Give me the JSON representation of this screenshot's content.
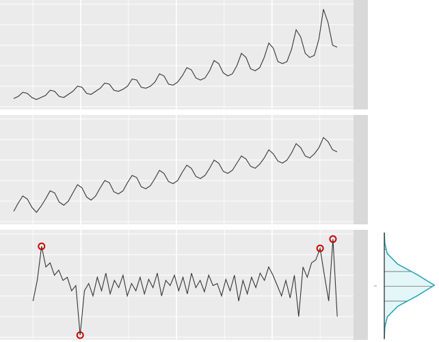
{
  "chart_data": [
    {
      "type": "line",
      "color": "#333333",
      "background": "#ebebeb",
      "strip": "#d9d9d9",
      "grid": true,
      "xlim": [
        -3,
        74.6
      ],
      "ylim": [
        0,
        100
      ],
      "xticks": [
        4.2,
        14.7,
        25.2,
        35.7,
        46.2,
        56.7,
        67.2
      ],
      "yticks": [
        0,
        20,
        40,
        60,
        80,
        100
      ],
      "values": [
        8,
        10,
        14,
        13,
        9,
        7,
        9,
        11,
        16,
        15,
        10,
        9,
        12,
        15,
        20,
        19,
        13,
        12,
        15,
        18,
        23,
        22,
        16,
        15,
        17,
        20,
        27,
        26,
        19,
        18,
        20,
        24,
        32,
        30,
        22,
        21,
        24,
        30,
        38,
        36,
        28,
        26,
        28,
        35,
        45,
        42,
        33,
        30,
        32,
        40,
        52,
        48,
        37,
        35,
        38,
        48,
        62,
        57,
        44,
        42,
        44,
        56,
        75,
        68,
        52,
        48,
        50,
        66,
        95,
        82,
        60,
        58
      ]
    },
    {
      "type": "line",
      "color": "#333333",
      "background": "#ebebeb",
      "strip": "#d9d9d9",
      "grid": true,
      "xlim": [
        -3,
        74.6
      ],
      "ylim": [
        0,
        100
      ],
      "xticks": [
        4.2,
        14.7,
        25.2,
        35.7,
        46.2,
        56.7,
        67.2
      ],
      "yticks": [
        0,
        20,
        40,
        60,
        80,
        100
      ],
      "values": [
        10,
        18,
        25,
        22,
        14,
        9,
        15,
        22,
        30,
        28,
        19,
        16,
        20,
        28,
        36,
        33,
        24,
        21,
        25,
        33,
        40,
        38,
        29,
        27,
        30,
        38,
        45,
        43,
        34,
        32,
        35,
        42,
        50,
        47,
        39,
        37,
        40,
        48,
        55,
        52,
        44,
        42,
        45,
        52,
        60,
        57,
        49,
        47,
        50,
        57,
        64,
        61,
        54,
        52,
        56,
        62,
        70,
        66,
        59,
        57,
        60,
        67,
        76,
        72,
        64,
        62,
        66,
        72,
        82,
        78,
        70,
        68
      ]
    },
    {
      "type": "line",
      "color": "#333333",
      "background": "#ebebeb",
      "strip": "#d9d9d9",
      "grid": true,
      "outlier_color": "#cc0000",
      "xlim": [
        -7.7,
        74.8
      ],
      "ylim": [
        0,
        100
      ],
      "xticks": [
        0,
        11.2,
        22.3,
        33.5,
        44.7,
        55.8,
        67
      ],
      "yticks": [
        0,
        20,
        40,
        60,
        80,
        100
      ],
      "values": [
        35,
        55,
        88,
        68,
        72,
        60,
        65,
        55,
        58,
        45,
        50,
        2,
        45,
        52,
        40,
        58,
        45,
        62,
        42,
        55,
        48,
        60,
        40,
        52,
        45,
        58,
        42,
        56,
        48,
        62,
        40,
        55,
        50,
        60,
        45,
        58,
        42,
        62,
        48,
        55,
        44,
        60,
        50,
        52,
        40,
        56,
        45,
        60,
        35,
        55,
        42,
        58,
        48,
        62,
        55,
        68,
        60,
        50,
        40,
        55,
        38,
        60,
        20,
        68,
        58,
        72,
        75,
        86,
        60,
        35,
        95,
        20
      ],
      "outliers": [
        2,
        11,
        67,
        70
      ]
    },
    {
      "type": "density",
      "color": "#2aa5b5",
      "fill": "#e3f6f8",
      "ylim": [
        0,
        100
      ],
      "xlim": [
        0,
        100
      ],
      "x": [
        0,
        10,
        20,
        30,
        40,
        50,
        60,
        70,
        80,
        90,
        100
      ],
      "values": [
        0.2,
        1,
        6,
        27,
        66,
        100,
        66,
        27,
        6,
        1,
        0.2
      ],
      "quantiles": [
        14,
        35,
        49,
        63,
        84
      ]
    }
  ]
}
